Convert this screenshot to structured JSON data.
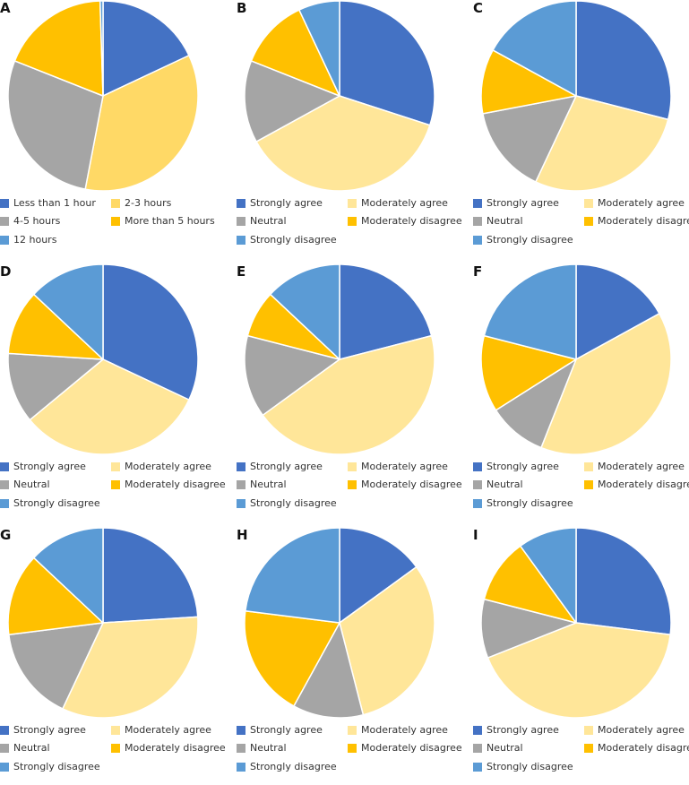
{
  "colors": {
    "strongly_agree": "#4472C4",
    "moderately_agree": "#FFE699",
    "neutral": "#A5A5A5",
    "moderately_disagree": "#FFC000",
    "strongly_disagree": "#5B9BD5",
    "hours_2_3": "#FFD966"
  },
  "chart_data": [
    {
      "type": "pie",
      "panel": "A",
      "slices": [
        {
          "label": "Less than 1 hour",
          "value": 18,
          "color": "#4472C4"
        },
        {
          "label": "2-3 hours",
          "value": 35,
          "color": "#FFD966"
        },
        {
          "label": "4-5 hours",
          "value": 28,
          "color": "#A5A5A5"
        },
        {
          "label": "More than 5 hours",
          "value": 18.5,
          "color": "#FFC000"
        },
        {
          "label": "12 hours",
          "value": 0.5,
          "color": "#5B9BD5"
        }
      ]
    },
    {
      "type": "pie",
      "panel": "B",
      "slices": [
        {
          "label": "Strongly agree",
          "value": 30,
          "color": "#4472C4"
        },
        {
          "label": "Moderately agree",
          "value": 37,
          "color": "#FFE699"
        },
        {
          "label": "Neutral",
          "value": 14,
          "color": "#A5A5A5"
        },
        {
          "label": "Moderately disagree",
          "value": 12,
          "color": "#FFC000"
        },
        {
          "label": "Strongly disagree",
          "value": 7,
          "color": "#5B9BD5"
        }
      ]
    },
    {
      "type": "pie",
      "panel": "C",
      "slices": [
        {
          "label": "Strongly agree",
          "value": 29,
          "color": "#4472C4"
        },
        {
          "label": "Moderately agree",
          "value": 28,
          "color": "#FFE699"
        },
        {
          "label": "Neutral",
          "value": 15,
          "color": "#A5A5A5"
        },
        {
          "label": "Moderately disagree",
          "value": 11,
          "color": "#FFC000"
        },
        {
          "label": "Strongly disagree",
          "value": 17,
          "color": "#5B9BD5"
        }
      ]
    },
    {
      "type": "pie",
      "panel": "D",
      "slices": [
        {
          "label": "Strongly agree",
          "value": 32,
          "color": "#4472C4"
        },
        {
          "label": "Moderately agree",
          "value": 32,
          "color": "#FFE699"
        },
        {
          "label": "Neutral",
          "value": 12,
          "color": "#A5A5A5"
        },
        {
          "label": "Moderately disagree",
          "value": 11,
          "color": "#FFC000"
        },
        {
          "label": "Strongly disagree",
          "value": 13,
          "color": "#5B9BD5"
        }
      ]
    },
    {
      "type": "pie",
      "panel": "E",
      "slices": [
        {
          "label": "Strongly agree",
          "value": 21,
          "color": "#4472C4"
        },
        {
          "label": "Moderately agree",
          "value": 44,
          "color": "#FFE699"
        },
        {
          "label": "Neutral",
          "value": 14,
          "color": "#A5A5A5"
        },
        {
          "label": "Moderately disagree",
          "value": 8,
          "color": "#FFC000"
        },
        {
          "label": "Strongly disagree",
          "value": 13,
          "color": "#5B9BD5"
        }
      ]
    },
    {
      "type": "pie",
      "panel": "F",
      "slices": [
        {
          "label": "Strongly agree",
          "value": 17,
          "color": "#4472C4"
        },
        {
          "label": "Moderately agree",
          "value": 39,
          "color": "#FFE699"
        },
        {
          "label": "Neutral",
          "value": 10,
          "color": "#A5A5A5"
        },
        {
          "label": "Moderately disagree",
          "value": 13,
          "color": "#FFC000"
        },
        {
          "label": "Strongly disagree",
          "value": 21,
          "color": "#5B9BD5"
        }
      ]
    },
    {
      "type": "pie",
      "panel": "G",
      "slices": [
        {
          "label": "Strongly agree",
          "value": 24,
          "color": "#4472C4"
        },
        {
          "label": "Moderately agree",
          "value": 33,
          "color": "#FFE699"
        },
        {
          "label": "Neutral",
          "value": 16,
          "color": "#A5A5A5"
        },
        {
          "label": "Moderately disagree",
          "value": 14,
          "color": "#FFC000"
        },
        {
          "label": "Strongly disagree",
          "value": 13,
          "color": "#5B9BD5"
        }
      ]
    },
    {
      "type": "pie",
      "panel": "H",
      "slices": [
        {
          "label": "Strongly agree",
          "value": 15,
          "color": "#4472C4"
        },
        {
          "label": "Moderately agree",
          "value": 31,
          "color": "#FFE699"
        },
        {
          "label": "Neutral",
          "value": 12,
          "color": "#A5A5A5"
        },
        {
          "label": "Moderately disagree",
          "value": 19,
          "color": "#FFC000"
        },
        {
          "label": "Strongly disagree",
          "value": 23,
          "color": "#5B9BD5"
        }
      ]
    },
    {
      "type": "pie",
      "panel": "I",
      "slices": [
        {
          "label": "Strongly agree",
          "value": 27,
          "color": "#4472C4"
        },
        {
          "label": "Moderately agree",
          "value": 42,
          "color": "#FFE699"
        },
        {
          "label": "Neutral",
          "value": 10,
          "color": "#A5A5A5"
        },
        {
          "label": "Moderately disagree",
          "value": 11,
          "color": "#FFC000"
        },
        {
          "label": "Strongly disagree",
          "value": 10,
          "color": "#5B9BD5"
        }
      ]
    }
  ]
}
